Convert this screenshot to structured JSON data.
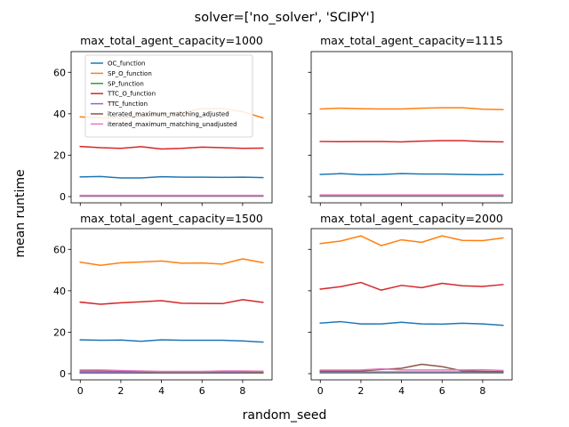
{
  "figure": {
    "suptitle": "solver=['no_solver', 'SCIPY']",
    "xlabel": "random_seed",
    "ylabel": "mean runtime"
  },
  "chart_data": {
    "type": "line",
    "x": [
      0,
      1,
      2,
      3,
      4,
      5,
      6,
      7,
      8,
      9
    ],
    "xlim": [
      -0.45,
      9.45
    ],
    "ylim": [
      -3,
      70
    ],
    "xticks": [
      0,
      2,
      4,
      6,
      8
    ],
    "yticks": [
      0,
      20,
      40,
      60
    ],
    "series_styles": [
      {
        "name": "OC_function",
        "color": "#1f77b4"
      },
      {
        "name": "SP_O_function",
        "color": "#ff7f0e"
      },
      {
        "name": "SP_function",
        "color": "#2ca02c"
      },
      {
        "name": "TTC_O_function",
        "color": "#d62728"
      },
      {
        "name": "TTC_function",
        "color": "#9467bd"
      },
      {
        "name": "iterated_maximum_matching_adjusted",
        "color": "#8c564b"
      },
      {
        "name": "iterated_maximum_matching_unadjusted",
        "color": "#e377c2"
      }
    ],
    "panels": [
      {
        "title": "max_total_agent_capacity=1000",
        "legend": "upper-left",
        "series": [
          {
            "name": "OC_function",
            "values": [
              9.5,
              9.7,
              9.0,
              9.0,
              9.6,
              9.4,
              9.4,
              9.3,
              9.4,
              9.2
            ]
          },
          {
            "name": "SP_O_function",
            "values": [
              38.5,
              38.0,
              38.0,
              38.5,
              40.0,
              40.5,
              42.5,
              42.5,
              41.0,
              38.0
            ]
          },
          {
            "name": "SP_function",
            "values": [
              0.2,
              0.2,
              0.2,
              0.2,
              0.2,
              0.2,
              0.2,
              0.2,
              0.2,
              0.2
            ]
          },
          {
            "name": "TTC_O_function",
            "values": [
              24.2,
              23.6,
              23.3,
              24.1,
              23.0,
              23.3,
              23.9,
              23.6,
              23.3,
              23.4
            ]
          },
          {
            "name": "TTC_function",
            "values": [
              0.3,
              0.3,
              0.3,
              0.3,
              0.3,
              0.3,
              0.3,
              0.3,
              0.3,
              0.3
            ]
          },
          {
            "name": "iterated_maximum_matching_adjusted",
            "values": [
              0.5,
              0.5,
              0.5,
              0.5,
              0.5,
              0.5,
              0.5,
              0.5,
              0.5,
              0.5
            ]
          },
          {
            "name": "iterated_maximum_matching_unadjusted",
            "values": [
              0.6,
              0.6,
              0.6,
              0.6,
              0.6,
              0.6,
              0.6,
              0.6,
              0.6,
              0.6
            ]
          }
        ]
      },
      {
        "title": "max_total_agent_capacity=1115",
        "series": [
          {
            "name": "OC_function",
            "values": [
              10.7,
              11.1,
              10.6,
              10.7,
              11.1,
              10.9,
              10.9,
              10.7,
              10.6,
              10.7
            ]
          },
          {
            "name": "SP_O_function",
            "values": [
              42.3,
              42.7,
              42.4,
              42.3,
              42.3,
              42.7,
              42.9,
              42.9,
              42.2,
              42.0
            ]
          },
          {
            "name": "SP_function",
            "values": [
              0.2,
              0.2,
              0.2,
              0.2,
              0.2,
              0.2,
              0.2,
              0.2,
              0.2,
              0.2
            ]
          },
          {
            "name": "TTC_O_function",
            "values": [
              26.6,
              26.5,
              26.6,
              26.6,
              26.4,
              26.8,
              27.0,
              27.0,
              26.6,
              26.4
            ]
          },
          {
            "name": "TTC_function",
            "values": [
              0.4,
              0.4,
              0.4,
              0.4,
              0.4,
              0.4,
              0.4,
              0.4,
              0.4,
              0.4
            ]
          },
          {
            "name": "iterated_maximum_matching_adjusted",
            "values": [
              0.6,
              0.6,
              0.6,
              0.6,
              0.6,
              0.6,
              0.6,
              0.6,
              0.6,
              0.6
            ]
          },
          {
            "name": "iterated_maximum_matching_unadjusted",
            "values": [
              0.8,
              0.8,
              0.8,
              0.8,
              0.8,
              0.8,
              0.8,
              0.8,
              0.8,
              0.8
            ]
          }
        ]
      },
      {
        "title": "max_total_agent_capacity=1500",
        "series": [
          {
            "name": "OC_function",
            "values": [
              16.3,
              16.1,
              16.2,
              15.6,
              16.3,
              16.1,
              16.1,
              16.1,
              15.8,
              15.2
            ]
          },
          {
            "name": "SP_O_function",
            "values": [
              53.8,
              52.3,
              53.5,
              53.9,
              54.4,
              53.3,
              53.4,
              52.9,
              55.4,
              53.6
            ]
          },
          {
            "name": "SP_function",
            "values": [
              0.3,
              0.3,
              0.3,
              0.3,
              0.3,
              0.3,
              0.3,
              0.3,
              0.3,
              0.3
            ]
          },
          {
            "name": "TTC_O_function",
            "values": [
              34.5,
              33.5,
              34.2,
              34.7,
              35.2,
              34.0,
              33.9,
              33.8,
              35.7,
              34.4
            ]
          },
          {
            "name": "TTC_function",
            "values": [
              0.6,
              0.6,
              0.6,
              0.6,
              0.6,
              0.6,
              0.6,
              0.6,
              0.6,
              0.6
            ]
          },
          {
            "name": "iterated_maximum_matching_adjusted",
            "values": [
              1.3,
              1.3,
              1.2,
              1.0,
              0.9,
              0.9,
              0.9,
              1.0,
              1.0,
              0.8
            ]
          },
          {
            "name": "iterated_maximum_matching_unadjusted",
            "values": [
              1.8,
              1.8,
              1.5,
              1.3,
              1.1,
              1.1,
              1.1,
              1.3,
              1.3,
              1.2
            ]
          }
        ]
      },
      {
        "title": "max_total_agent_capacity=2000",
        "series": [
          {
            "name": "OC_function",
            "values": [
              24.4,
              25.1,
              24.0,
              24.0,
              24.8,
              24.0,
              23.9,
              24.3,
              24.0,
              23.3
            ]
          },
          {
            "name": "SP_O_function",
            "values": [
              62.8,
              64.0,
              66.5,
              61.8,
              64.6,
              63.4,
              66.5,
              64.3,
              64.2,
              65.5
            ]
          },
          {
            "name": "SP_function",
            "values": [
              0.4,
              0.4,
              0.4,
              0.4,
              0.4,
              0.4,
              0.4,
              0.4,
              0.4,
              0.4
            ]
          },
          {
            "name": "TTC_O_function",
            "values": [
              40.8,
              42.0,
              44.0,
              40.3,
              42.6,
              41.5,
              43.6,
              42.4,
              42.1,
              43.0
            ]
          },
          {
            "name": "TTC_function",
            "values": [
              0.8,
              0.8,
              0.8,
              0.8,
              0.8,
              0.8,
              0.8,
              0.8,
              0.8,
              0.8
            ]
          },
          {
            "name": "iterated_maximum_matching_adjusted",
            "values": [
              1.2,
              1.2,
              1.3,
              2.0,
              2.6,
              4.5,
              3.4,
              1.3,
              1.1,
              1.0
            ]
          },
          {
            "name": "iterated_maximum_matching_unadjusted",
            "values": [
              1.7,
              1.7,
              1.8,
              2.3,
              1.8,
              1.8,
              1.8,
              1.8,
              1.9,
              1.5
            ]
          }
        ]
      }
    ]
  }
}
